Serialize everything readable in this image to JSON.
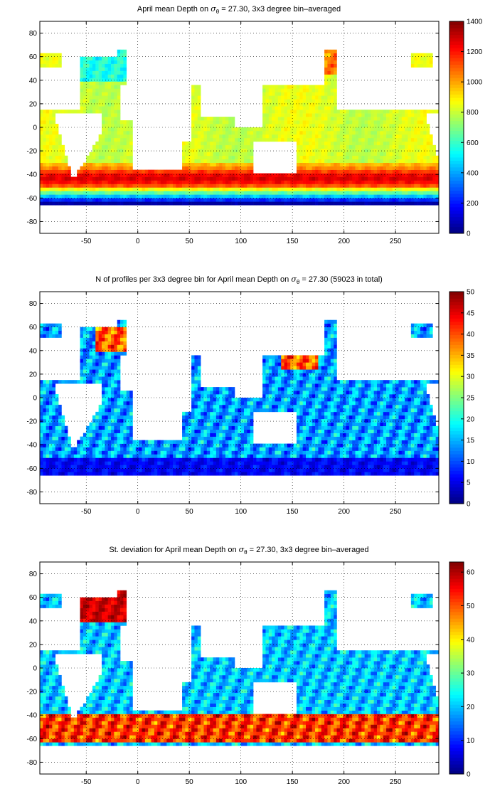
{
  "chart_data": [
    {
      "type": "heatmap",
      "title_parts": {
        "pre": "April mean Depth on ",
        "sigma": "σ",
        "sub": "θ",
        "post": " = 27.30, 3x3 degree bin–averaged"
      },
      "xlabel": "",
      "ylabel": "",
      "xlim": [
        -95,
        292
      ],
      "ylim": [
        -90,
        90
      ],
      "x_ticks": [
        -50,
        0,
        50,
        100,
        150,
        200,
        250
      ],
      "y_ticks": [
        -80,
        -60,
        -40,
        -20,
        0,
        20,
        40,
        60,
        80
      ],
      "colorbar": {
        "min": 0,
        "max": 1400,
        "ticks": [
          0,
          200,
          400,
          600,
          800,
          1000,
          1200,
          1400
        ]
      },
      "colormap": "jet",
      "grid": "dotted",
      "field": "mean_depth"
    },
    {
      "type": "heatmap",
      "title_parts": {
        "pre": "N of profiles per 3x3 degree bin for April mean Depth on ",
        "sigma": "σ",
        "sub": "θ",
        "post": " = 27.30 (59023 in total)"
      },
      "xlabel": "",
      "ylabel": "",
      "xlim": [
        -95,
        292
      ],
      "ylim": [
        -90,
        90
      ],
      "x_ticks": [
        -50,
        0,
        50,
        100,
        150,
        200,
        250
      ],
      "y_ticks": [
        -80,
        -60,
        -40,
        -20,
        0,
        20,
        40,
        60,
        80
      ],
      "colorbar": {
        "min": 0,
        "max": 50,
        "ticks": [
          0,
          5,
          10,
          15,
          20,
          25,
          30,
          35,
          40,
          45,
          50
        ]
      },
      "colormap": "jet",
      "grid": "dotted",
      "field": "n_profiles"
    },
    {
      "type": "heatmap",
      "title_parts": {
        "pre": "St. deviation for April mean Depth on ",
        "sigma": "σ",
        "sub": "θ",
        "post": " = 27.30, 3x3 degree bin–averaged"
      },
      "xlabel": "",
      "ylabel": "",
      "xlim": [
        -95,
        292
      ],
      "ylim": [
        -90,
        90
      ],
      "x_ticks": [
        -50,
        0,
        50,
        100,
        150,
        200,
        250
      ],
      "y_ticks": [
        -80,
        -60,
        -40,
        -20,
        0,
        20,
        40,
        60,
        80
      ],
      "colorbar": {
        "min": 0,
        "max": 63,
        "ticks": [
          0,
          10,
          20,
          30,
          40,
          50,
          60
        ]
      },
      "colormap": "jet",
      "grid": "dotted",
      "field": "std_dev"
    }
  ]
}
